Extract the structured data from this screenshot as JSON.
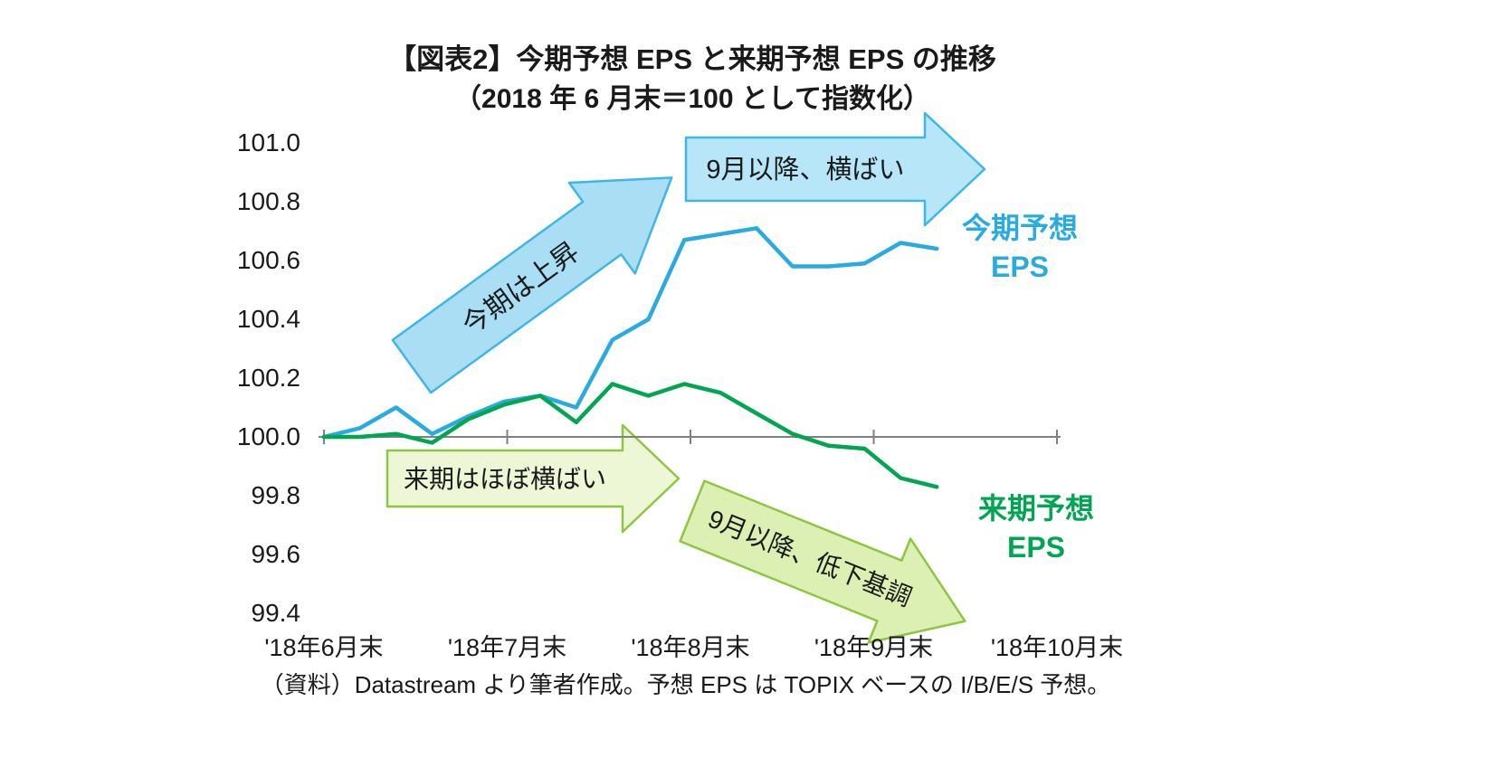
{
  "chart_data": {
    "type": "line",
    "title": "【図表2】今期予想 EPS と来期予想 EPS の推移",
    "subtitle": "（2018 年 6 月末＝100 として指数化）",
    "ylim": [
      99.4,
      101.0
    ],
    "baseline": 100.0,
    "grid": "off",
    "y_tick_labels": [
      "101.0",
      "100.8",
      "100.6",
      "100.4",
      "100.2",
      "100.0",
      "99.8",
      "99.6",
      "99.4"
    ],
    "x_tick_labels": [
      "'18年6月末",
      "'18年7月末",
      "'18年8月末",
      "'18年9月末",
      "'18年10月末"
    ],
    "series": [
      {
        "name": "今期予想EPS",
        "label_line1": "今期予想",
        "label_line2": "EPS",
        "color": "#29abe2",
        "values": [
          100.0,
          100.03,
          100.1,
          100.01,
          100.07,
          100.12,
          100.14,
          100.1,
          100.33,
          100.4,
          100.67,
          100.69,
          100.71,
          100.58,
          100.58,
          100.59,
          100.66,
          100.64
        ]
      },
      {
        "name": "来期予想EPS",
        "label_line1": "来期予想",
        "label_line2": "EPS",
        "color": "#00a651",
        "values": [
          100.0,
          100.0,
          100.01,
          99.98,
          100.06,
          100.11,
          100.14,
          100.05,
          100.18,
          100.14,
          100.18,
          100.15,
          100.08,
          100.01,
          99.97,
          99.96,
          99.86,
          99.83
        ]
      }
    ],
    "annotations": [
      {
        "id": "arrow-rising",
        "text": "今期は上昇",
        "fill": "#a9def4",
        "stroke": "#3db6e8"
      },
      {
        "id": "arrow-flat-this",
        "text": "9月以降、横ばい",
        "fill": "#b6e6f8",
        "stroke": "#3db6e8"
      },
      {
        "id": "arrow-flat-next",
        "text": "来期はほぼ横ばい",
        "fill": "#edf7d6",
        "stroke": "#8dc63f"
      },
      {
        "id": "arrow-down-next",
        "text": "9月以降、低下基調",
        "fill": "#dcf0b4",
        "stroke": "#8dc63f"
      }
    ],
    "axis_color": "#808080",
    "source": "（資料）Datastream より筆者作成。予想 EPS は TOPIX ベースの I/B/E/S 予想。"
  }
}
